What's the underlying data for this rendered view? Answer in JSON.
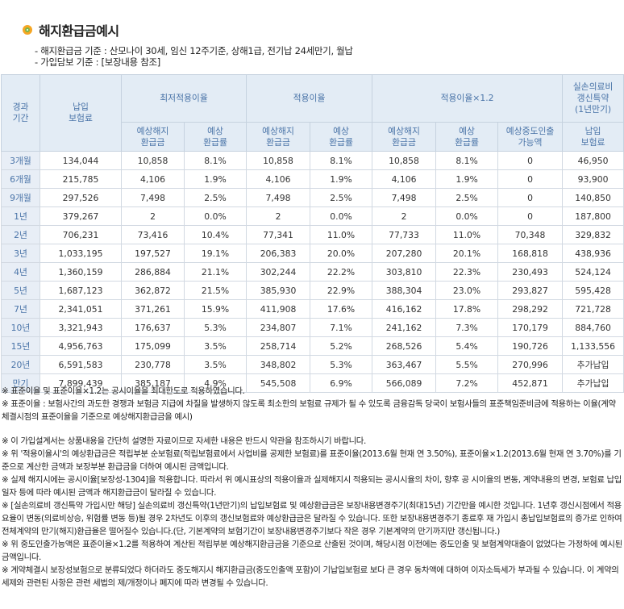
{
  "title": "해지환급금예시",
  "basis": {
    "line1": "- 해지환급금 기준 : 산모나이 30세, 임신 12주기준, 상해1급, 전기납 24세만기, 월납",
    "line2": "- 가입담보 기준 : [보장내용 참조]"
  },
  "table": {
    "headers": {
      "term": "경과\n기간",
      "premium": "납입\n보험료",
      "min_rate": "최저적용이율",
      "rate": "적용이율",
      "rate12": "적용이율×1.2",
      "medical": "실손의료비\n갱신특약\n(1년만기)",
      "refund_amount": "예상해지\n환급금",
      "refund_ratio": "예상\n환급률",
      "mid_withdraw": "예상중도인출\n가능액",
      "med_premium": "납입\n보험료"
    },
    "rows": [
      [
        "3개월",
        "134,044",
        "10,858",
        "8.1%",
        "10,858",
        "8.1%",
        "10,858",
        "8.1%",
        "0",
        "46,950"
      ],
      [
        "6개월",
        "215,785",
        "4,106",
        "1.9%",
        "4,106",
        "1.9%",
        "4,106",
        "1.9%",
        "0",
        "93,900"
      ],
      [
        "9개월",
        "297,526",
        "7,498",
        "2.5%",
        "7,498",
        "2.5%",
        "7,498",
        "2.5%",
        "0",
        "140,850"
      ],
      [
        "1년",
        "379,267",
        "2",
        "0.0%",
        "2",
        "0.0%",
        "2",
        "0.0%",
        "0",
        "187,800"
      ],
      [
        "2년",
        "706,231",
        "73,416",
        "10.4%",
        "77,341",
        "11.0%",
        "77,733",
        "11.0%",
        "70,348",
        "329,832"
      ],
      [
        "3년",
        "1,033,195",
        "197,527",
        "19.1%",
        "206,383",
        "20.0%",
        "207,280",
        "20.1%",
        "168,818",
        "438,936"
      ],
      [
        "4년",
        "1,360,159",
        "286,884",
        "21.1%",
        "302,244",
        "22.2%",
        "303,810",
        "22.3%",
        "230,493",
        "524,124"
      ],
      [
        "5년",
        "1,687,123",
        "362,872",
        "21.5%",
        "385,930",
        "22.9%",
        "388,304",
        "23.0%",
        "293,827",
        "595,428"
      ],
      [
        "7년",
        "2,341,051",
        "371,261",
        "15.9%",
        "411,908",
        "17.6%",
        "416,162",
        "17.8%",
        "298,292",
        "721,728"
      ],
      [
        "10년",
        "3,321,943",
        "176,637",
        "5.3%",
        "234,807",
        "7.1%",
        "241,162",
        "7.3%",
        "170,179",
        "884,760"
      ],
      [
        "15년",
        "4,956,763",
        "175,099",
        "3.5%",
        "258,714",
        "5.2%",
        "268,526",
        "5.4%",
        "190,726",
        "1,133,556"
      ],
      [
        "20년",
        "6,591,583",
        "230,778",
        "3.5%",
        "348,802",
        "5.3%",
        "363,467",
        "5.5%",
        "270,996",
        "추가납입"
      ],
      [
        "만기",
        "7,899,439",
        "385,187",
        "4.9%",
        "545,508",
        "6.9%",
        "566,089",
        "7.2%",
        "452,871",
        "추가납입"
      ]
    ]
  },
  "notes": [
    "※ 표준이율 및 표준이율×1.2는 공시이율을 최대한도로 적용하였습니다.",
    "※ 표준이율 : 보험사간의 과도한 경쟁과 보험금 지급에 차질을 발생하지 않도록 최소한의 보험료 규제가 될 수 있도록 금융감독 당국이 보험사들의 표준책임준비금에 적용하는 이율(계약체결시점의 표준이율을 기준으로 예상해지환급금을 예시)",
    "",
    "※ 이 가입설계서는 상품내용을 간단히 설명한 자료이므로 자세한 내용은 반드시 약관을 참조하시기 바랍니다.",
    "※ 위 '적용이율시'의 예상환급금은 적립부분 순보험료(적립보험료에서 사업비를 공제한 보험료)를 표준이율(2013.6월 현재 연 3.50%), 표준이율×1.2(2013.6월 현재 연 3.70%)를 기준으로 계산한 금액과 보장부분 환급금을 더하여 예시된 금액입니다.",
    "※ 실제 해지시에는 공시이율[보장성-1304]을 적용합니다. 따라서 위 예시표상의 적용이율과 실제해지시 적용되는 공시시율의 차이, 향후 공 시이율의 변동, 계약내용의 변경, 보험료 납입일자 등에 따라 예시된 금액과 해지환급금이 달라질 수 있습니다.",
    "※ [실손의료비 갱신특약 가입시만 해당] 실손의료비 갱신특약(1년만기)의 납입보험료 및 예상환급금은 보장내용변경주기(최대15년) 기간만을 예시한 것입니다. 1년후 갱신시점에서 적용요율이 변동(의료비상승, 위험률 변동 등)될 경우 2차년도 이후의 갱신보험료와 예상환급금은 달라질 수 있습니다. 또한 보장내용변경주기 종료후 재 가입시 총납입보험료의 증가로 인하여 전체계약의 만기(해지)환급율은 떨어질수 있습니다.(단, 기본계약의 보험기간이 보장내용변경주기보다 작은 경우 기본계약의 만기까지만 갱신됩니다.)",
    "※ 위 중도인출가능액은 표준이율×1.2를 적용하여 계산된 적립부분 예상해지환급금을 기준으로 산출된 것이며, 해당시점 이전에는 중도인출 및 보험계약대출이 없었다는 가정하에 예시된 금액입니다.",
    "※ 계약체결시 보장성보험으로 분류되었다 하더라도 중도해지시 해지환급금(중도인출액 포함)이 기납입보험료 보다 큰 경우 동차액에 대하여 이자소득세가 부과될 수 있습니다. 이 계약의 세제와 관련된 사항은 관련 세법의 제/개정이나 폐지에 따라 변경될 수 있습니다."
  ]
}
